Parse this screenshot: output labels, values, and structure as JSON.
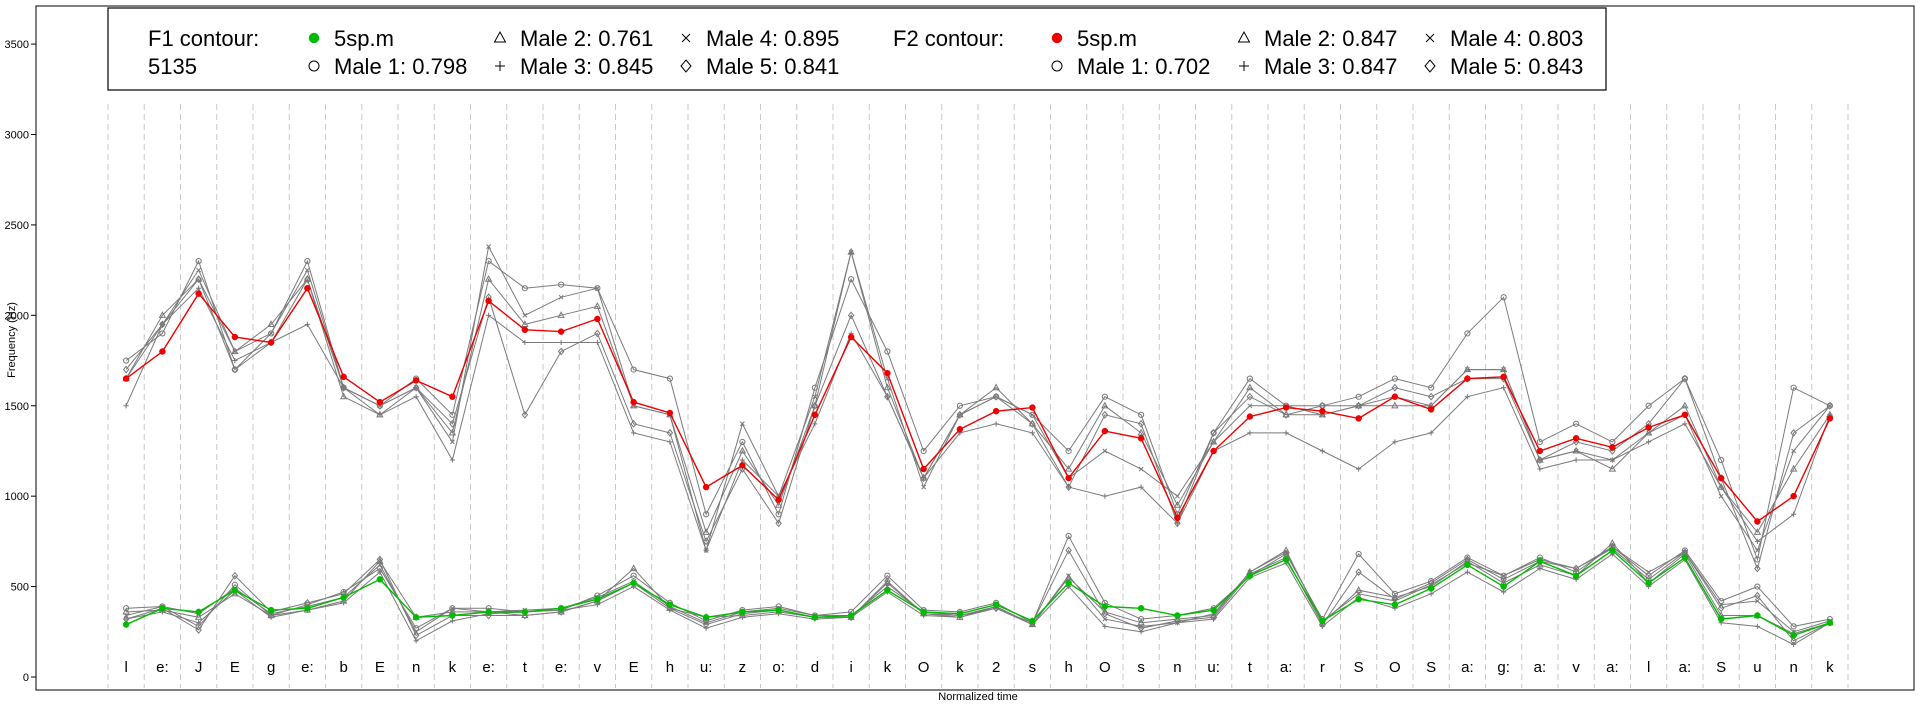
{
  "chart_data": {
    "type": "line",
    "xlabel": "Normalized time",
    "ylabel": "Frequency (Hz)",
    "ylim": [
      0,
      3600
    ],
    "y_ticks": [
      0,
      500,
      1000,
      1500,
      2000,
      2500,
      3000,
      3500
    ],
    "grid": "vertical dashed at segment boundaries",
    "legend": {
      "placement": "top-left",
      "f1_title": "F1 contour:",
      "f1_subtitle": "5135",
      "f2_title": "F2 contour:",
      "f1_entries": [
        {
          "marker": "filled-dot",
          "color": "#00bb00",
          "label": "5sp.m"
        },
        {
          "marker": "circle",
          "label": "Male 1: 0.798"
        },
        {
          "marker": "triangle",
          "label": "Male 2: 0.761"
        },
        {
          "marker": "plus",
          "label": "Male 3: 0.845"
        },
        {
          "marker": "cross",
          "label": "Male 4: 0.895"
        },
        {
          "marker": "diamond",
          "label": "Male 5: 0.841"
        }
      ],
      "f2_entries": [
        {
          "marker": "filled-dot",
          "color": "#ee0000",
          "label": "5sp.m"
        },
        {
          "marker": "circle",
          "label": "Male 1: 0.702"
        },
        {
          "marker": "triangle",
          "label": "Male 2: 0.847"
        },
        {
          "marker": "plus",
          "label": "Male 3: 0.847"
        },
        {
          "marker": "cross",
          "label": "Male 4: 0.803"
        },
        {
          "marker": "diamond",
          "label": "Male 5: 0.843"
        }
      ]
    },
    "segments": [
      "l",
      "e:",
      "J",
      "E",
      "g",
      "e:",
      "b",
      "E",
      "n",
      "k",
      "e:",
      "t",
      "e:",
      "v",
      "E",
      "h",
      "u:",
      "z",
      "o:",
      "d",
      "i",
      "k",
      "O",
      "k",
      "2",
      "s",
      "h",
      "O",
      "s",
      "n",
      "u:",
      "t",
      "a:",
      "r",
      "S",
      "O",
      "S",
      "a:",
      "g:",
      "a:",
      "v",
      "a:",
      "l",
      "a:",
      "S",
      "u",
      "n",
      "k"
    ],
    "series": [
      {
        "name": "F2 5sp.m",
        "color": "#ee0000",
        "contour": "F2",
        "values": [
          1650,
          1800,
          2120,
          1880,
          1850,
          2150,
          1660,
          1520,
          1640,
          1550,
          2080,
          1920,
          1910,
          1980,
          1520,
          1460,
          1050,
          1170,
          980,
          1450,
          1880,
          1680,
          1150,
          1370,
          1470,
          1490,
          1100,
          1360,
          1320,
          880,
          1250,
          1440,
          1490,
          1470,
          1430,
          1550,
          1480,
          1650,
          1660,
          1250,
          1320,
          1270,
          1380,
          1450,
          1100,
          860,
          1000,
          1430
        ]
      },
      {
        "name": "F1 5sp.m",
        "color": "#00bb00",
        "contour": "F1",
        "values": [
          290,
          380,
          360,
          480,
          370,
          380,
          440,
          540,
          330,
          340,
          360,
          360,
          380,
          430,
          520,
          400,
          330,
          360,
          370,
          330,
          340,
          480,
          360,
          350,
          400,
          310,
          520,
          390,
          380,
          340,
          370,
          560,
          650,
          310,
          430,
          400,
          490,
          620,
          500,
          640,
          560,
          700,
          520,
          660,
          320,
          340,
          230,
          300
        ]
      },
      {
        "name": "F2 Male 1",
        "color": "#888888",
        "contour": "F2",
        "values": [
          1750,
          1900,
          2300,
          1700,
          1900,
          2300,
          1600,
          1500,
          1650,
          1450,
          2300,
          2150,
          2170,
          2150,
          1700,
          1650,
          900,
          1300,
          900,
          1600,
          2200,
          1800,
          1250,
          1500,
          1550,
          1450,
          1250,
          1550,
          1450,
          900,
          1350,
          1650,
          1500,
          1500,
          1550,
          1650,
          1600,
          1900,
          2100,
          1300,
          1400,
          1300,
          1500,
          1650,
          1200,
          650,
          1600,
          1500
        ]
      },
      {
        "name": "F2 Male 2",
        "color": "#888888",
        "contour": "F2",
        "values": [
          1650,
          2000,
          2200,
          1800,
          1950,
          2200,
          1550,
          1450,
          1600,
          1350,
          2200,
          1950,
          2000,
          2050,
          1500,
          1450,
          800,
          1250,
          950,
          1500,
          2350,
          1600,
          1100,
          1450,
          1600,
          1400,
          1150,
          1500,
          1350,
          950,
          1300,
          1600,
          1450,
          1450,
          1500,
          1500,
          1500,
          1700,
          1700,
          1200,
          1250,
          1150,
          1350,
          1500,
          1050,
          800,
          1150,
          1450
        ]
      },
      {
        "name": "F2 Male 3",
        "color": "#888888",
        "contour": "F2",
        "values": [
          1500,
          1950,
          2150,
          1750,
          1850,
          1950,
          1600,
          1450,
          1550,
          1200,
          2000,
          1850,
          1850,
          1850,
          1350,
          1300,
          700,
          1200,
          1000,
          1400,
          1900,
          1550,
          1100,
          1350,
          1400,
          1350,
          1050,
          1000,
          1050,
          850,
          1250,
          1350,
          1350,
          1250,
          1150,
          1300,
          1350,
          1550,
          1600,
          1150,
          1200,
          1200,
          1300,
          1400,
          1050,
          750,
          900,
          1450
        ]
      },
      {
        "name": "F2 Male 4",
        "color": "#888888",
        "contour": "F2",
        "values": [
          1650,
          1950,
          2250,
          1800,
          1900,
          2250,
          1600,
          1500,
          1600,
          1300,
          2380,
          2000,
          2100,
          2150,
          1500,
          1450,
          700,
          1400,
          1000,
          1550,
          2350,
          1650,
          1050,
          1450,
          1550,
          1450,
          1100,
          1250,
          1150,
          1000,
          1300,
          1500,
          1500,
          1450,
          1500,
          1550,
          1500,
          1700,
          1700,
          1200,
          1250,
          1200,
          1350,
          1450,
          1000,
          700,
          1250,
          1500
        ]
      },
      {
        "name": "F2 Male 5",
        "color": "#888888",
        "contour": "F2",
        "values": [
          1700,
          1950,
          2200,
          1700,
          1850,
          2200,
          1600,
          1500,
          1600,
          1400,
          2100,
          1450,
          1800,
          1900,
          1400,
          1350,
          750,
          1150,
          850,
          1500,
          2000,
          1550,
          1100,
          1450,
          1550,
          1400,
          1050,
          1450,
          1400,
          850,
          1350,
          1550,
          1450,
          1500,
          1500,
          1600,
          1550,
          1650,
          1650,
          1200,
          1300,
          1250,
          1400,
          1650,
          1100,
          600,
          1350,
          1500
        ]
      },
      {
        "name": "F1 Male 1",
        "color": "#888888",
        "contour": "F1",
        "values": [
          380,
          390,
          280,
          510,
          340,
          400,
          470,
          600,
          270,
          380,
          380,
          360,
          370,
          450,
          560,
          410,
          310,
          370,
          390,
          340,
          360,
          560,
          370,
          360,
          410,
          300,
          780,
          410,
          320,
          340,
          380,
          560,
          680,
          320,
          680,
          460,
          530,
          660,
          560,
          660,
          580,
          720,
          560,
          700,
          420,
          500,
          280,
          320
        ]
      },
      {
        "name": "F1 Male 2",
        "color": "#888888",
        "contour": "F1",
        "values": [
          360,
          370,
          330,
          460,
          340,
          370,
          420,
          640,
          330,
          360,
          360,
          340,
          360,
          420,
          600,
          380,
          330,
          340,
          360,
          330,
          330,
          520,
          350,
          330,
          390,
          290,
          550,
          360,
          300,
          320,
          340,
          580,
          700,
          300,
          480,
          440,
          500,
          640,
          520,
          620,
          560,
          740,
          520,
          680,
          340,
          340,
          240,
          300
        ]
      },
      {
        "name": "F1 Male 3",
        "color": "#888888",
        "contour": "F1",
        "values": [
          320,
          360,
          300,
          480,
          330,
          370,
          410,
          580,
          200,
          310,
          350,
          360,
          370,
          400,
          500,
          370,
          270,
          330,
          350,
          320,
          330,
          470,
          340,
          330,
          380,
          290,
          500,
          280,
          250,
          300,
          320,
          550,
          630,
          280,
          440,
          380,
          460,
          580,
          470,
          600,
          540,
          680,
          500,
          650,
          300,
          280,
          180,
          300
        ]
      },
      {
        "name": "F1 Male 4",
        "color": "#888888",
        "contour": "F1",
        "values": [
          340,
          390,
          350,
          490,
          350,
          390,
          440,
          620,
          250,
          380,
          360,
          370,
          380,
          440,
          530,
          390,
          300,
          360,
          380,
          340,
          340,
          500,
          360,
          340,
          390,
          290,
          560,
          320,
          280,
          300,
          350,
          580,
          690,
          310,
          460,
          420,
          510,
          630,
          560,
          650,
          600,
          720,
          580,
          690,
          400,
          420,
          250,
          310
        ]
      },
      {
        "name": "F1 Male 5",
        "color": "#888888",
        "contour": "F1",
        "values": [
          320,
          380,
          260,
          560,
          360,
          410,
          460,
          650,
          230,
          340,
          340,
          340,
          360,
          420,
          520,
          380,
          290,
          350,
          370,
          330,
          330,
          530,
          350,
          340,
          380,
          300,
          700,
          350,
          270,
          310,
          330,
          570,
          660,
          290,
          580,
          430,
          520,
          650,
          540,
          640,
          600,
          710,
          540,
          690,
          380,
          450,
          200,
          300
        ]
      }
    ]
  }
}
